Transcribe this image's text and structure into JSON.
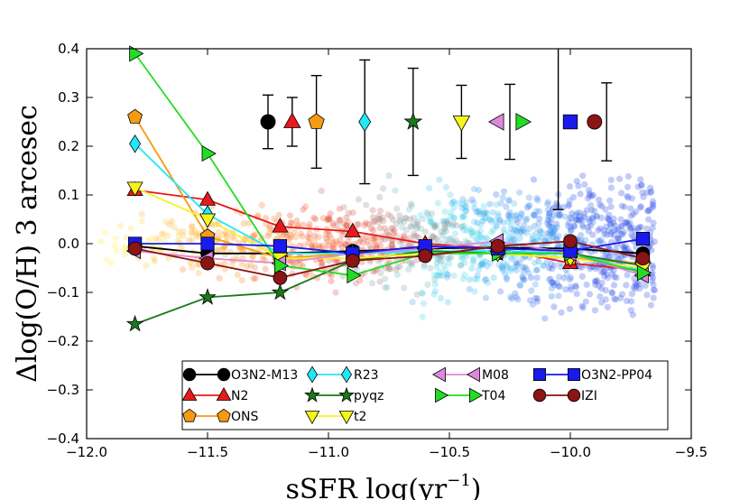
{
  "chart_data": {
    "type": "line",
    "title": "",
    "xlabel": "sSFR log(yr",
    "xlabel_sup": "−1",
    "xlabel_close": ")",
    "ylabel": "Δlog(O/H) 3 arcesec",
    "xlim": [
      -12.0,
      -9.5
    ],
    "ylim": [
      -0.4,
      0.4
    ],
    "xticks": [
      -12.0,
      -11.5,
      -11.0,
      -10.5,
      -10.0,
      -9.5
    ],
    "xtick_labels": [
      "−12.0",
      "−11.5",
      "−11.0",
      "−10.5",
      "−10.0",
      "−9.5"
    ],
    "yticks": [
      -0.4,
      -0.3,
      -0.2,
      -0.1,
      0.0,
      0.1,
      0.2,
      0.3,
      0.4
    ],
    "ytick_labels": [
      "−0.4",
      "−0.3",
      "−0.2",
      "−0.1",
      "0.0",
      "0.1",
      "0.2",
      "0.3",
      "0.4"
    ],
    "x": [
      -11.8,
      -11.5,
      -11.2,
      -10.9,
      -10.6,
      -10.3,
      -10.0,
      -9.7
    ],
    "series": [
      {
        "name": "O3N2-M13",
        "color": "#000000",
        "marker": "circle",
        "values": [
          -0.005,
          -0.02,
          -0.02,
          -0.015,
          -0.01,
          -0.008,
          -0.01,
          -0.02
        ]
      },
      {
        "name": "N2",
        "color": "#e8191c",
        "marker": "triangle-up",
        "values": [
          0.11,
          0.09,
          0.035,
          0.025,
          0.0,
          -0.01,
          -0.04,
          -0.055
        ]
      },
      {
        "name": "ONS",
        "color": "#f59b12",
        "marker": "pentagon",
        "values": [
          0.26,
          0.015,
          -0.03,
          -0.02,
          -0.015,
          -0.02,
          -0.03,
          -0.04
        ]
      },
      {
        "name": "R23",
        "color": "#22e8f5",
        "marker": "diamond",
        "values": [
          0.205,
          0.06,
          -0.02,
          -0.02,
          -0.015,
          -0.015,
          -0.02,
          -0.055
        ]
      },
      {
        "name": "pyqz",
        "color": "#1a7a1a",
        "marker": "star",
        "values": [
          -0.165,
          -0.11,
          -0.1,
          -0.035,
          -0.015,
          -0.02,
          -0.02,
          -0.045
        ]
      },
      {
        "name": "t2",
        "color": "#f5f51c",
        "marker": "triangle-down",
        "values": [
          0.115,
          0.05,
          -0.03,
          -0.03,
          -0.02,
          -0.02,
          -0.03,
          -0.05
        ]
      },
      {
        "name": "M08",
        "color": "#dd88dd",
        "marker": "triangle-left",
        "values": [
          -0.015,
          -0.03,
          -0.04,
          -0.02,
          -0.01,
          0.005,
          -0.02,
          -0.065
        ]
      },
      {
        "name": "T04",
        "color": "#22dd22",
        "marker": "triangle-right",
        "values": [
          0.39,
          0.185,
          -0.045,
          -0.065,
          -0.02,
          -0.02,
          -0.02,
          -0.06
        ]
      },
      {
        "name": "O3N2-PP04",
        "color": "#1a1aee",
        "marker": "square",
        "values": [
          0.0,
          0.0,
          -0.005,
          -0.02,
          -0.005,
          -0.01,
          -0.015,
          0.01
        ]
      },
      {
        "name": "IZI",
        "color": "#8b1414",
        "marker": "circle",
        "values": [
          -0.01,
          -0.04,
          -0.07,
          -0.035,
          -0.025,
          -0.005,
          0.005,
          -0.03
        ]
      }
    ],
    "error_bars": {
      "x": [
        -11.25,
        -11.15,
        -11.05,
        -10.85,
        -10.65,
        -10.45,
        -10.25,
        -10.05,
        -9.85
      ],
      "y": 0.25,
      "lower": [
        0.055,
        0.05,
        0.095,
        0.127,
        0.11,
        0.075,
        0.077,
        0.18,
        0.08
      ],
      "upper": [
        0.055,
        0.05,
        0.095,
        0.127,
        0.11,
        0.075,
        0.077,
        0.18,
        0.08
      ],
      "series_order": [
        "O3N2-M13",
        "N2",
        "ONS",
        "R23",
        "pyqz",
        "t2",
        "M08",
        "T04",
        "O3N2-PP04",
        "IZI"
      ]
    },
    "background_scatter": {
      "description_free": true,
      "x_range": [
        -12.0,
        -9.6
      ],
      "center_y": 0.0,
      "color_gradient": [
        "yellow",
        "orange",
        "red",
        "cyan",
        "blue"
      ]
    },
    "legend": {
      "placement": "lower-center",
      "columns": [
        [
          "O3N2-M13",
          "N2",
          "ONS"
        ],
        [
          "R23",
          "pyqz",
          "t2"
        ],
        [
          "M08",
          "T04"
        ],
        [
          "O3N2-PP04",
          "IZI"
        ]
      ]
    }
  }
}
